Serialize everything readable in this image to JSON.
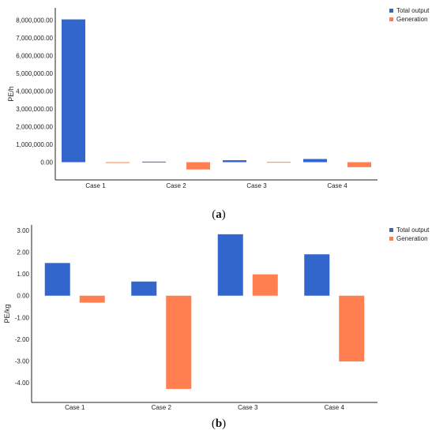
{
  "colors": {
    "total_output": "#3366cc",
    "generation": "#ff7f50",
    "axis": "#222222"
  },
  "chart_data": [
    {
      "type": "bar",
      "panel": "a",
      "categories": [
        "Case 1",
        "Case 2",
        "Case 3",
        "Case 4"
      ],
      "series": [
        {
          "name": "Total output",
          "values": [
            8050000,
            30000,
            110000,
            180000
          ]
        },
        {
          "name": "Generation",
          "values": [
            -15000,
            -410000,
            15000,
            -280000
          ]
        }
      ],
      "ylabel": "PE/h",
      "ylim": [
        -1000000,
        8700000
      ],
      "yticks": [
        0,
        1000000,
        2000000,
        3000000,
        4000000,
        5000000,
        6000000,
        7000000,
        8000000
      ],
      "ytick_labels": [
        "0.00",
        "1,000,000.00",
        "2,000,000.00",
        "3,000,000.00",
        "4,000,000.00",
        "5,000,000.00",
        "6,000,000.00",
        "7,000,000.00",
        "8,000,000.00"
      ],
      "legend": "top-right",
      "grid": false
    },
    {
      "type": "bar",
      "panel": "b",
      "categories": [
        "Case 1",
        "Case 2",
        "Case 3",
        "Case 4"
      ],
      "series": [
        {
          "name": "Total output",
          "values": [
            1.5,
            0.65,
            2.82,
            1.9
          ]
        },
        {
          "name": "Generation",
          "values": [
            -0.32,
            -4.28,
            0.98,
            -3.02
          ]
        }
      ],
      "ylabel": "PE/kg",
      "ylim": [
        -4.9,
        3.25
      ],
      "yticks": [
        -4,
        -3,
        -2,
        -1,
        0,
        1,
        2,
        3
      ],
      "ytick_labels": [
        "-4.00",
        "-3.00",
        "-2.00",
        "-1.00",
        "0.00",
        "1.00",
        "2.00",
        "3.00"
      ],
      "legend": "top-right",
      "grid": false
    }
  ],
  "captions": [
    {
      "open": "(",
      "letter": "a",
      "close": ")"
    },
    {
      "open": "(",
      "letter": "b",
      "close": ")"
    }
  ]
}
